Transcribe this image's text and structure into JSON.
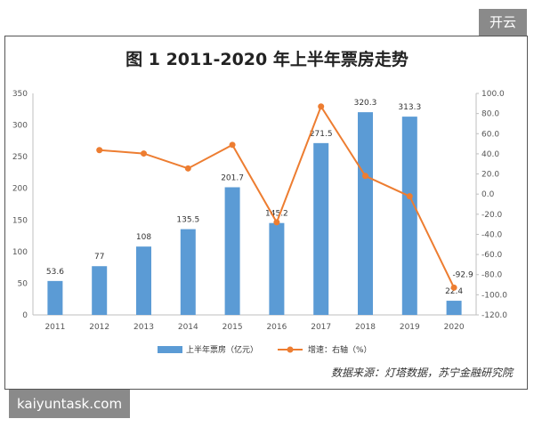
{
  "title": "图 1  2011-2020 年上半年票房走势",
  "badge": "开云",
  "watermark": "kaiyuntask.com",
  "source": "数据来源：灯塔数据，苏宁金融研究院",
  "colors": {
    "bar": "#5b9bd5",
    "line": "#ed7d31",
    "axis": "#bfbfbf"
  },
  "chart_data": {
    "type": "bar",
    "title": "图 1  2011-2020 年上半年票房走势",
    "categories": [
      "2011",
      "2012",
      "2013",
      "2014",
      "2015",
      "2016",
      "2017",
      "2018",
      "2019",
      "2020"
    ],
    "series": [
      {
        "name": "上半年票房（亿元）",
        "type": "bar",
        "axis": "left",
        "values": [
          53.6,
          77,
          108,
          135.5,
          201.7,
          145.2,
          271.5,
          320.3,
          313.3,
          22.4
        ],
        "labels": [
          "53.6",
          "77",
          "108",
          "135.5",
          "201.7",
          "145.2",
          "271.5",
          "320.3",
          "313.3",
          "22.4"
        ]
      },
      {
        "name": "增速：右轴（%）",
        "type": "line",
        "axis": "right",
        "values": [
          null,
          43.7,
          40.3,
          25.5,
          48.9,
          -28.0,
          87.0,
          18.0,
          -2.2,
          -92.9
        ],
        "labels": [
          "",
          "",
          "",
          "",
          "",
          "",
          "",
          "",
          "",
          "-92.9"
        ]
      }
    ],
    "ylim_left": [
      0,
      350
    ],
    "yticks_left": [
      "0",
      "50",
      "100",
      "150",
      "200",
      "250",
      "300",
      "350"
    ],
    "ylim_right": [
      -120,
      100
    ],
    "yticks_right": [
      "-120.0",
      "-100.0",
      "-80.0",
      "-60.0",
      "-40.0",
      "-20.0",
      "0.0",
      "20.0",
      "40.0",
      "60.0",
      "80.0",
      "100.0"
    ],
    "grid": false,
    "legend_position": "bottom"
  }
}
